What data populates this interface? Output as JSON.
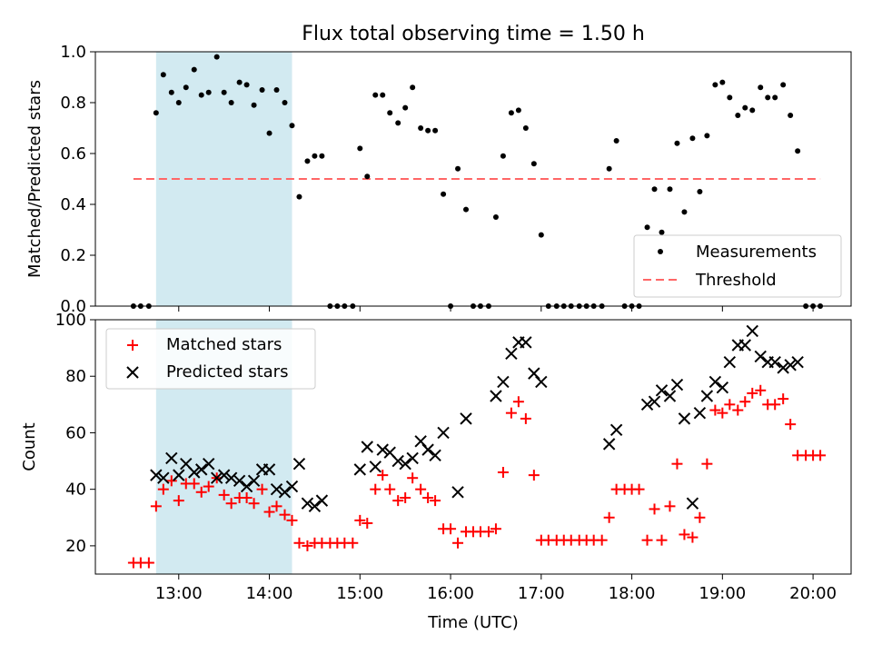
{
  "colors": {
    "shade": "#add8e6",
    "threshold": "#ff6666",
    "matched": "#ff0000",
    "predicted": "#000000",
    "measurement": "#000000"
  },
  "chart_data": [
    {
      "type": "scatter",
      "title": "Flux total observing time = 1.50 h",
      "ylabel": "Matched/Predicted stars",
      "xlabel": "",
      "xlim_hours": [
        12.08,
        20.42
      ],
      "ylim": [
        0,
        1.0
      ],
      "yticks": [
        "0.0",
        "0.2",
        "0.4",
        "0.6",
        "0.8",
        "1.0"
      ],
      "shaded_span_hours": [
        12.75,
        14.25
      ],
      "legend_position": "lower-right",
      "threshold": {
        "name": "Threshold",
        "value": 0.5,
        "x_range_hours": [
          12.5,
          20.08
        ]
      },
      "series": [
        {
          "name": "Measurements",
          "marker": "dot",
          "x_hours": [
            12.5,
            12.58,
            12.67,
            12.75,
            12.83,
            12.92,
            13.0,
            13.08,
            13.17,
            13.25,
            13.33,
            13.42,
            13.5,
            13.58,
            13.67,
            13.75,
            13.83,
            13.92,
            14.0,
            14.08,
            14.17,
            14.25,
            14.33,
            14.42,
            14.5,
            14.58,
            14.67,
            14.75,
            14.83,
            14.92,
            15.0,
            15.08,
            15.17,
            15.25,
            15.33,
            15.42,
            15.5,
            15.58,
            15.67,
            15.75,
            15.83,
            15.92,
            16.0,
            16.08,
            16.17,
            16.25,
            16.33,
            16.42,
            16.5,
            16.58,
            16.67,
            16.75,
            16.83,
            16.92,
            17.0,
            17.08,
            17.17,
            17.25,
            17.33,
            17.42,
            17.5,
            17.58,
            17.67,
            17.75,
            17.83,
            17.92,
            18.0,
            18.08,
            18.17,
            18.25,
            18.33,
            18.42,
            18.5,
            18.58,
            18.67,
            18.75,
            18.83,
            18.92,
            19.0,
            19.08,
            19.17,
            19.25,
            19.33,
            19.42,
            19.5,
            19.58,
            19.67,
            19.75,
            19.83,
            19.92,
            20.0,
            20.08
          ],
          "values": [
            0,
            0,
            0,
            0.76,
            0.91,
            0.84,
            0.8,
            0.86,
            0.93,
            0.83,
            0.84,
            0.98,
            0.84,
            0.8,
            0.88,
            0.87,
            0.79,
            0.85,
            0.68,
            0.85,
            0.8,
            0.71,
            0.43,
            0.57,
            0.59,
            0.59,
            0,
            0,
            0,
            0,
            0.62,
            0.51,
            0.83,
            0.83,
            0.76,
            0.72,
            0.78,
            0.86,
            0.7,
            0.69,
            0.69,
            0.44,
            0,
            0.54,
            0.38,
            0,
            0,
            0,
            0.35,
            0.59,
            0.76,
            0.77,
            0.7,
            0.56,
            0.28,
            0,
            0,
            0,
            0,
            0,
            0,
            0,
            0,
            0.54,
            0.65,
            0,
            0,
            0,
            0.31,
            0.46,
            0.29,
            0.46,
            0.64,
            0.37,
            0.66,
            0.45,
            0.67,
            0.87,
            0.88,
            0.82,
            0.75,
            0.78,
            0.77,
            0.86,
            0.82,
            0.82,
            0.87,
            0.75,
            0.61,
            0,
            0,
            0
          ]
        }
      ]
    },
    {
      "type": "scatter",
      "title": "",
      "ylabel": "Count",
      "xlabel": "Time (UTC)",
      "xlim_hours": [
        12.08,
        20.42
      ],
      "ylim": [
        10,
        100
      ],
      "yticks": [
        "20",
        "40",
        "60",
        "80",
        "100"
      ],
      "xticks": [
        "13:00",
        "14:00",
        "15:00",
        "16:00",
        "17:00",
        "18:00",
        "19:00",
        "20:00"
      ],
      "xticks_hours": [
        13,
        14,
        15,
        16,
        17,
        18,
        19,
        20
      ],
      "shaded_span_hours": [
        12.75,
        14.25
      ],
      "legend_position": "upper-left",
      "series": [
        {
          "name": "Matched stars",
          "marker": "plus",
          "x_hours": [
            12.5,
            12.58,
            12.67,
            12.75,
            12.83,
            12.92,
            13.0,
            13.08,
            13.17,
            13.25,
            13.33,
            13.42,
            13.5,
            13.58,
            13.67,
            13.75,
            13.83,
            13.92,
            14.0,
            14.08,
            14.17,
            14.25,
            14.33,
            14.42,
            14.5,
            14.58,
            14.67,
            14.75,
            14.83,
            14.92,
            15.0,
            15.08,
            15.17,
            15.25,
            15.33,
            15.42,
            15.5,
            15.58,
            15.67,
            15.75,
            15.83,
            15.92,
            16.0,
            16.08,
            16.17,
            16.25,
            16.33,
            16.42,
            16.5,
            16.58,
            16.67,
            16.75,
            16.83,
            16.92,
            17.0,
            17.08,
            17.17,
            17.25,
            17.33,
            17.42,
            17.5,
            17.58,
            17.67,
            17.75,
            17.83,
            17.92,
            18.0,
            18.08,
            18.17,
            18.25,
            18.33,
            18.42,
            18.5,
            18.58,
            18.67,
            18.75,
            18.83,
            18.92,
            19.0,
            19.08,
            19.17,
            19.25,
            19.33,
            19.42,
            19.5,
            19.58,
            19.67,
            19.75,
            19.83,
            19.92,
            20.0,
            20.08
          ],
          "values": [
            14,
            14,
            14,
            34,
            40,
            43,
            36,
            42,
            42,
            39,
            41,
            44,
            38,
            35,
            37,
            37,
            35,
            40,
            32,
            34,
            31,
            29,
            21,
            20,
            21,
            21,
            21,
            21,
            21,
            21,
            29,
            28,
            40,
            45,
            40,
            36,
            37,
            44,
            40,
            37,
            36,
            26,
            26,
            21,
            25,
            25,
            25,
            25,
            26,
            46,
            67,
            71,
            65,
            45,
            22,
            22,
            22,
            22,
            22,
            22,
            22,
            22,
            22,
            30,
            40,
            40,
            40,
            40,
            22,
            33,
            22,
            34,
            49,
            24,
            23,
            30,
            49,
            68,
            67,
            70,
            68,
            71,
            74,
            75,
            70,
            70,
            72,
            63,
            52,
            52,
            52,
            52
          ]
        },
        {
          "name": "Predicted stars",
          "marker": "x",
          "x_hours": [
            12.75,
            12.83,
            12.92,
            13.0,
            13.08,
            13.17,
            13.25,
            13.33,
            13.42,
            13.5,
            13.58,
            13.67,
            13.75,
            13.83,
            13.92,
            14.0,
            14.08,
            14.17,
            14.25,
            14.33,
            14.42,
            14.5,
            14.58,
            15.0,
            15.08,
            15.17,
            15.25,
            15.33,
            15.42,
            15.5,
            15.58,
            15.67,
            15.75,
            15.83,
            15.92,
            16.08,
            16.17,
            16.5,
            16.58,
            16.67,
            16.75,
            16.83,
            16.92,
            17.0,
            17.75,
            17.83,
            18.17,
            18.25,
            18.33,
            18.42,
            18.5,
            18.58,
            18.67,
            18.75,
            18.83,
            18.92,
            19.0,
            19.08,
            19.17,
            19.25,
            19.33,
            19.42,
            19.5,
            19.58,
            19.67,
            19.75,
            19.83
          ],
          "values": [
            45,
            44,
            51,
            45,
            49,
            46,
            47,
            49,
            44,
            45,
            44,
            43,
            41,
            43,
            47,
            47,
            40,
            39,
            41,
            49,
            35,
            34,
            36,
            47,
            55,
            48,
            54,
            53,
            50,
            49,
            51,
            57,
            54,
            52,
            60,
            39,
            65,
            73,
            78,
            88,
            92,
            92,
            81,
            78,
            56,
            61,
            70,
            71,
            75,
            73,
            77,
            65,
            35,
            67,
            73,
            78,
            76,
            85,
            91,
            91,
            96,
            87,
            85,
            85,
            83,
            84,
            85
          ]
        }
      ]
    }
  ]
}
